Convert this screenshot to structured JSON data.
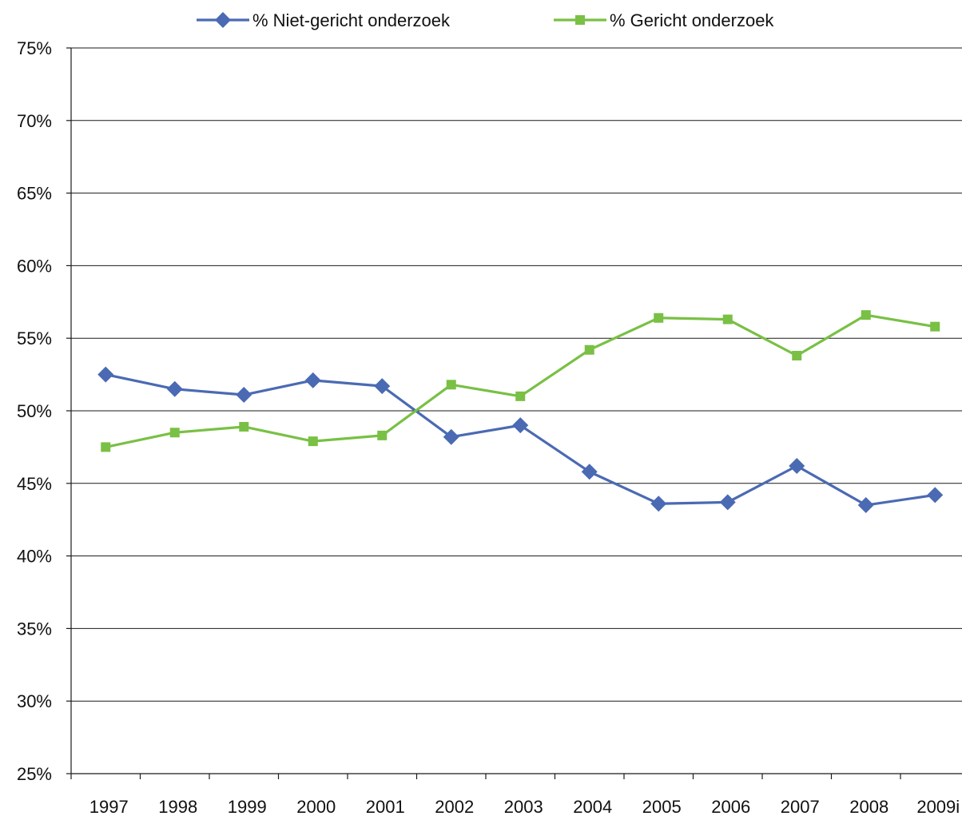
{
  "chart_data": {
    "type": "line",
    "categories": [
      "1997",
      "1998",
      "1999",
      "2000",
      "2001",
      "2002",
      "2003",
      "2004",
      "2005",
      "2006",
      "2007",
      "2008",
      "2009i"
    ],
    "series": [
      {
        "name": "% Niet-gericht onderzoek",
        "color": "#4a6ab3",
        "marker": "diamond",
        "values": [
          52.5,
          51.5,
          51.1,
          52.1,
          51.7,
          48.2,
          49.0,
          45.8,
          43.6,
          43.7,
          46.2,
          43.5,
          44.2
        ]
      },
      {
        "name": "% Gericht onderzoek",
        "color": "#79c045",
        "marker": "square",
        "values": [
          47.5,
          48.5,
          48.9,
          47.9,
          48.3,
          51.8,
          51.0,
          54.2,
          56.4,
          56.3,
          53.8,
          56.6,
          55.8
        ]
      }
    ],
    "yticks": [
      "25%",
      "30%",
      "35%",
      "40%",
      "45%",
      "50%",
      "55%",
      "60%",
      "65%",
      "70%",
      "75%"
    ],
    "ylim": [
      25,
      75
    ],
    "ytick_step": 5,
    "grid": true,
    "legend_position": "top"
  }
}
